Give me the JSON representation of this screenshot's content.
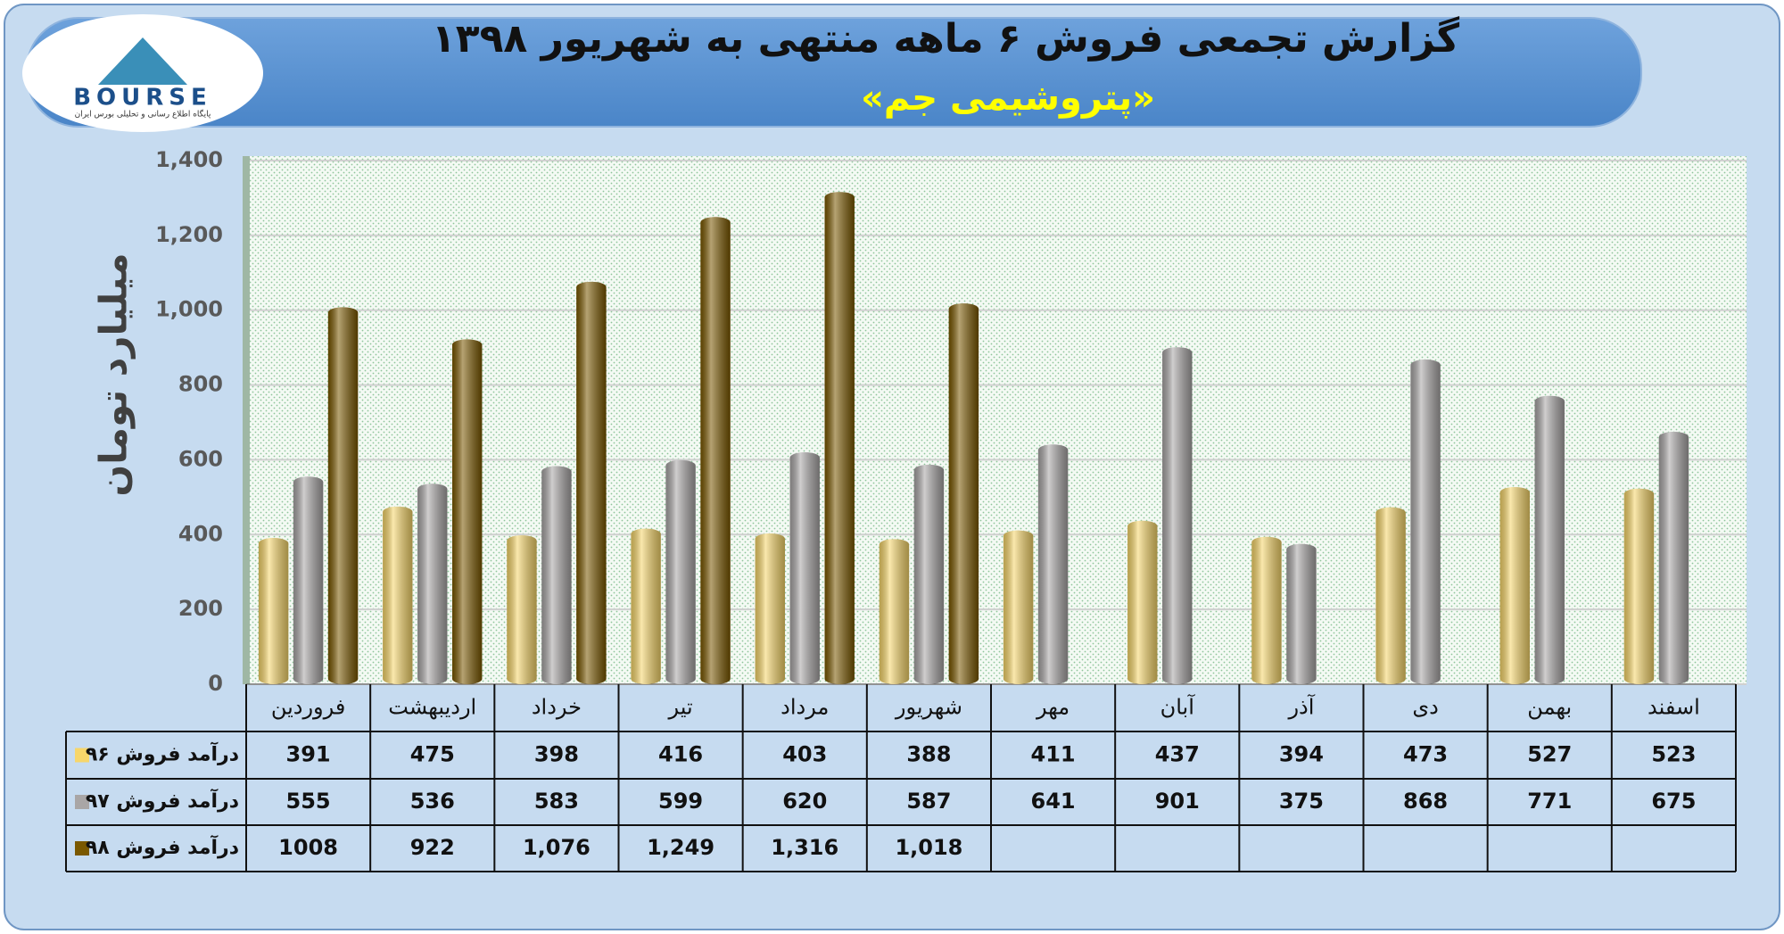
{
  "chart_data": {
    "type": "bar",
    "title": "گزارش تجمعی فروش ۶ ماهه منتهی به شهریور ۱۳۹۸",
    "subtitle": "«پتروشیمی جم»",
    "y_label": "میلیارد تومان",
    "logo_text": "BOURSE",
    "logo_tagline": "پایگاه اطلاع رسانی و تحلیلی بورس ایران",
    "categories": [
      "فروردین",
      "اردیبهشت",
      "خرداد",
      "تیر",
      "مرداد",
      "شهریور",
      "مهر",
      "آبان",
      "آذر",
      "دی",
      "بهمن",
      "اسفند"
    ],
    "series": [
      {
        "name": "درآمد فروش ۹۶",
        "color": "#f7d66a",
        "values": [
          391,
          475,
          398,
          416,
          403,
          388,
          411,
          437,
          394,
          473,
          527,
          523
        ]
      },
      {
        "name": "درآمد فروش ۹۷",
        "color": "#a9a6a6",
        "values": [
          555,
          536,
          583,
          599,
          620,
          587,
          641,
          901,
          375,
          868,
          771,
          675
        ]
      },
      {
        "name": "درآمد فروش ۹۸",
        "color": "#7a5800",
        "values": [
          1008,
          922,
          1076,
          1249,
          1316,
          1018,
          null,
          null,
          null,
          null,
          null,
          null
        ],
        "value_labels": [
          "1008",
          "922",
          "1,076",
          "1,249",
          "1,316",
          "1,018",
          null,
          null,
          null,
          null,
          null,
          null
        ]
      }
    ],
    "ylim": [
      0,
      1400
    ],
    "yticks": [
      0,
      200,
      400,
      600,
      800,
      {
        "value": 1000,
        "label": "1,000"
      },
      {
        "value": 1200,
        "label": "1,200"
      },
      {
        "value": 1400,
        "label": "1,400"
      }
    ],
    "grid": true
  }
}
